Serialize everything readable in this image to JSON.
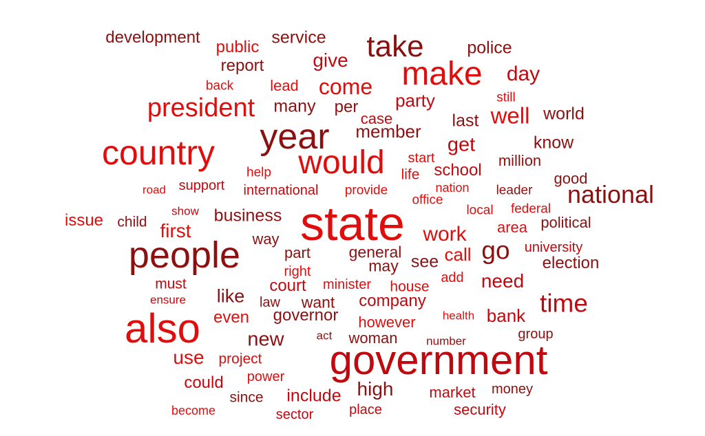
{
  "colors": {
    "red": "#e00d0d",
    "crimson": "#c0090f",
    "maroon": "#8b1010",
    "background": "#ffffff"
  },
  "words": [
    {
      "text": "development",
      "tone": "maroon"
    },
    {
      "text": "public",
      "tone": "red"
    },
    {
      "text": "service",
      "tone": "maroon"
    },
    {
      "text": "take",
      "tone": "maroon"
    },
    {
      "text": "police",
      "tone": "maroon"
    },
    {
      "text": "report",
      "tone": "maroon"
    },
    {
      "text": "give",
      "tone": "crimson"
    },
    {
      "text": "make",
      "tone": "red"
    },
    {
      "text": "day",
      "tone": "crimson"
    },
    {
      "text": "back",
      "tone": "red"
    },
    {
      "text": "lead",
      "tone": "red"
    },
    {
      "text": "come",
      "tone": "red"
    },
    {
      "text": "still",
      "tone": "red"
    },
    {
      "text": "president",
      "tone": "red"
    },
    {
      "text": "many",
      "tone": "maroon"
    },
    {
      "text": "per",
      "tone": "maroon"
    },
    {
      "text": "party",
      "tone": "crimson"
    },
    {
      "text": "case",
      "tone": "crimson"
    },
    {
      "text": "last",
      "tone": "maroon"
    },
    {
      "text": "well",
      "tone": "red"
    },
    {
      "text": "world",
      "tone": "maroon"
    },
    {
      "text": "year",
      "tone": "maroon"
    },
    {
      "text": "member",
      "tone": "maroon"
    },
    {
      "text": "country",
      "tone": "red"
    },
    {
      "text": "get",
      "tone": "crimson"
    },
    {
      "text": "know",
      "tone": "maroon"
    },
    {
      "text": "start",
      "tone": "red"
    },
    {
      "text": "would",
      "tone": "red"
    },
    {
      "text": "million",
      "tone": "maroon"
    },
    {
      "text": "help",
      "tone": "red"
    },
    {
      "text": "life",
      "tone": "red"
    },
    {
      "text": "school",
      "tone": "crimson"
    },
    {
      "text": "good",
      "tone": "maroon"
    },
    {
      "text": "road",
      "tone": "red"
    },
    {
      "text": "support",
      "tone": "crimson"
    },
    {
      "text": "international",
      "tone": "crimson"
    },
    {
      "text": "provide",
      "tone": "red"
    },
    {
      "text": "nation",
      "tone": "red"
    },
    {
      "text": "leader",
      "tone": "maroon"
    },
    {
      "text": "national",
      "tone": "maroon"
    },
    {
      "text": "office",
      "tone": "red"
    },
    {
      "text": "show",
      "tone": "crimson"
    },
    {
      "text": "local",
      "tone": "red"
    },
    {
      "text": "federal",
      "tone": "red"
    },
    {
      "text": "issue",
      "tone": "red"
    },
    {
      "text": "child",
      "tone": "maroon"
    },
    {
      "text": "business",
      "tone": "maroon"
    },
    {
      "text": "state",
      "tone": "red"
    },
    {
      "text": "political",
      "tone": "maroon"
    },
    {
      "text": "first",
      "tone": "red"
    },
    {
      "text": "area",
      "tone": "red"
    },
    {
      "text": "work",
      "tone": "red"
    },
    {
      "text": "people",
      "tone": "maroon"
    },
    {
      "text": "way",
      "tone": "maroon"
    },
    {
      "text": "part",
      "tone": "maroon"
    },
    {
      "text": "go",
      "tone": "maroon"
    },
    {
      "text": "university",
      "tone": "crimson"
    },
    {
      "text": "general",
      "tone": "maroon"
    },
    {
      "text": "call",
      "tone": "red"
    },
    {
      "text": "may",
      "tone": "maroon"
    },
    {
      "text": "see",
      "tone": "maroon"
    },
    {
      "text": "election",
      "tone": "maroon"
    },
    {
      "text": "right",
      "tone": "red"
    },
    {
      "text": "must",
      "tone": "crimson"
    },
    {
      "text": "court",
      "tone": "crimson"
    },
    {
      "text": "minister",
      "tone": "red"
    },
    {
      "text": "house",
      "tone": "red"
    },
    {
      "text": "add",
      "tone": "red"
    },
    {
      "text": "need",
      "tone": "crimson"
    },
    {
      "text": "like",
      "tone": "maroon"
    },
    {
      "text": "ensure",
      "tone": "crimson"
    },
    {
      "text": "law",
      "tone": "maroon"
    },
    {
      "text": "want",
      "tone": "maroon"
    },
    {
      "text": "company",
      "tone": "crimson"
    },
    {
      "text": "time",
      "tone": "crimson"
    },
    {
      "text": "governor",
      "tone": "maroon"
    },
    {
      "text": "even",
      "tone": "red"
    },
    {
      "text": "however",
      "tone": "red"
    },
    {
      "text": "health",
      "tone": "red"
    },
    {
      "text": "bank",
      "tone": "crimson"
    },
    {
      "text": "also",
      "tone": "red"
    },
    {
      "text": "new",
      "tone": "maroon"
    },
    {
      "text": "act",
      "tone": "maroon"
    },
    {
      "text": "woman",
      "tone": "maroon"
    },
    {
      "text": "number",
      "tone": "maroon"
    },
    {
      "text": "group",
      "tone": "maroon"
    },
    {
      "text": "use",
      "tone": "red"
    },
    {
      "text": "project",
      "tone": "red"
    },
    {
      "text": "government",
      "tone": "crimson"
    },
    {
      "text": "could",
      "tone": "crimson"
    },
    {
      "text": "power",
      "tone": "red"
    },
    {
      "text": "high",
      "tone": "maroon"
    },
    {
      "text": "market",
      "tone": "crimson"
    },
    {
      "text": "money",
      "tone": "maroon"
    },
    {
      "text": "since",
      "tone": "maroon"
    },
    {
      "text": "include",
      "tone": "crimson"
    },
    {
      "text": "become",
      "tone": "red"
    },
    {
      "text": "place",
      "tone": "crimson"
    },
    {
      "text": "sector",
      "tone": "crimson"
    },
    {
      "text": "security",
      "tone": "crimson"
    }
  ]
}
